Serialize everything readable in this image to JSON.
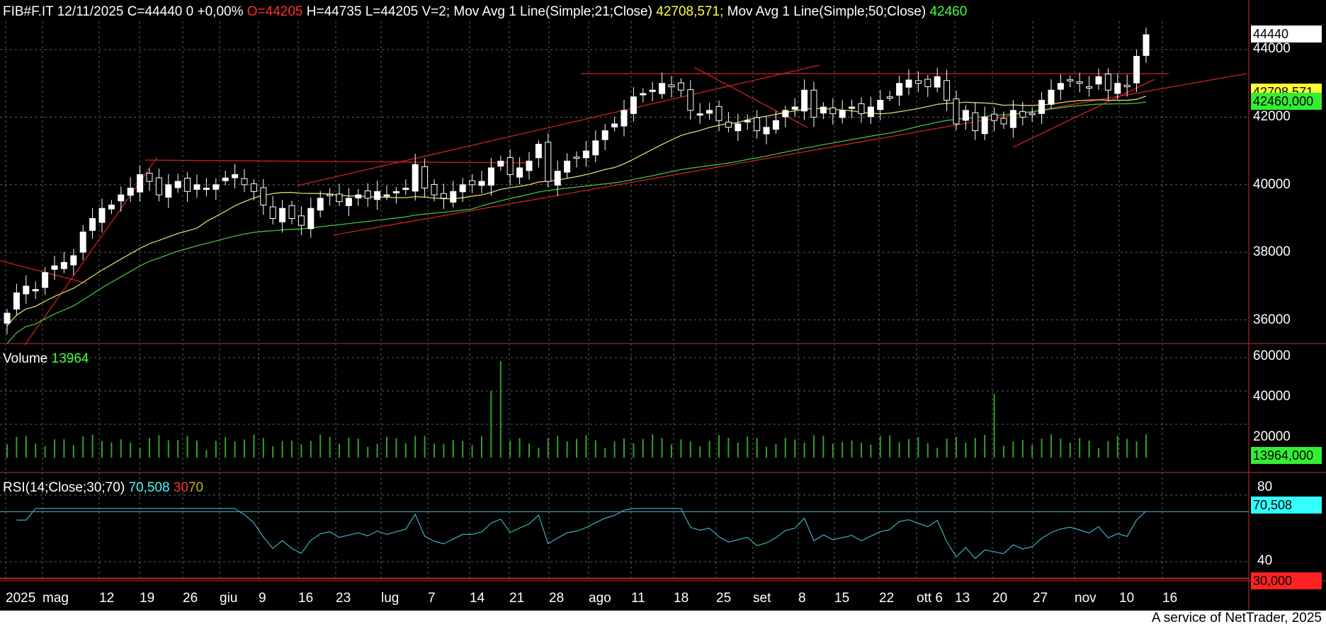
{
  "header": {
    "symbol": "FIB#F.IT",
    "date": "12/11/2025",
    "close": "C=44440",
    "change": "0",
    "change_pct": "+0,00%",
    "open": "O=44205",
    "high": "H=44735",
    "low": "L=44205",
    "volume": "V=2;",
    "ma21_label": "Mov Avg 1 Line(Simple;21;Close)",
    "ma21_value": "42708,571;",
    "ma50_label": "Mov Avg 1 Line(Simple;50;Close)",
    "ma50_value": "42460"
  },
  "volume_panel": {
    "label": "Volume",
    "value": "13964"
  },
  "rsi_panel": {
    "label": "RSI(14;Close;30;70)",
    "value": "70,508",
    "lower": "30",
    "upper": "70"
  },
  "price_axis": [
    "44000",
    "42000",
    "40000",
    "38000",
    "36000"
  ],
  "volume_axis": [
    "60000",
    "40000",
    "20000"
  ],
  "rsi_axis": [
    "80",
    "40"
  ],
  "tags": {
    "last_price": "44440",
    "ma21": "42708,571",
    "ma50": "42460,000",
    "volume": "13964,000",
    "rsi": "70,508",
    "rsi_low": "30,000"
  },
  "colors": {
    "background": "#000000",
    "ma21": "#d8d870",
    "ma50": "#40c040",
    "trendline": "#d02020",
    "rsi": "#3fb0c0",
    "volume": "#30a030"
  },
  "x_axis": [
    {
      "label": "2025"
    },
    {
      "label": "mag"
    },
    {
      "label": "12"
    },
    {
      "label": "19"
    },
    {
      "label": "26"
    },
    {
      "label": "giu"
    },
    {
      "label": "9"
    },
    {
      "label": "16"
    },
    {
      "label": "23"
    },
    {
      "label": "lug"
    },
    {
      "label": "7"
    },
    {
      "label": "14"
    },
    {
      "label": "21"
    },
    {
      "label": "28"
    },
    {
      "label": "ago"
    },
    {
      "label": "11"
    },
    {
      "label": "18"
    },
    {
      "label": "25"
    },
    {
      "label": "set"
    },
    {
      "label": "8"
    },
    {
      "label": "15"
    },
    {
      "label": "22"
    },
    {
      "label": "ott 6"
    },
    {
      "label": "13"
    },
    {
      "label": "20"
    },
    {
      "label": "27"
    },
    {
      "label": "nov"
    },
    {
      "label": "10"
    },
    {
      "label": "16"
    }
  ],
  "footer": "A service of NetTrader, 2025",
  "chart_data": {
    "type": "candlestick",
    "price_range": [
      35500,
      45000
    ],
    "closes": [
      36200,
      36800,
      37000,
      36900,
      37400,
      37600,
      37700,
      37900,
      38600,
      39000,
      39300,
      39400,
      39700,
      39900,
      40300,
      40100,
      39700,
      40000,
      40100,
      39800,
      40000,
      39900,
      40000,
      40200,
      40300,
      40000,
      39800,
      39400,
      39000,
      39300,
      39000,
      38800,
      39300,
      39600,
      39700,
      39500,
      39600,
      39700,
      39600,
      39800,
      39700,
      39800,
      39900,
      40600,
      39900,
      39700,
      39600,
      39800,
      40000,
      40000,
      40100,
      40500,
      40700,
      40300,
      40500,
      40700,
      41200,
      40100,
      40400,
      40700,
      40800,
      41000,
      41300,
      41600,
      41800,
      42200,
      42600,
      42700,
      42800,
      43000,
      42900,
      42800,
      42200,
      42100,
      42200,
      41900,
      41700,
      41800,
      41900,
      41600,
      41700,
      41900,
      42200,
      42300,
      42800,
      42000,
      42300,
      42100,
      42200,
      42300,
      42100,
      42300,
      42500,
      42600,
      43000,
      43100,
      43000,
      42900,
      43200,
      42500,
      41800,
      42200,
      41600,
      42000,
      41900,
      41800,
      42200,
      42000,
      42100,
      42500,
      42800,
      43000,
      43100,
      43000,
      42900,
      43200,
      42800,
      43000,
      42900,
      43800,
      44440
    ],
    "ma21_last": 42708.571,
    "ma50_last": 42460,
    "volume_range": [
      0,
      64000
    ],
    "volume_last": 13964,
    "volume_spikes": [
      {
        "index": 51,
        "value": 40000
      },
      {
        "index": 52,
        "value": 58000
      },
      {
        "index": 104,
        "value": 38000
      }
    ],
    "rsi_range": [
      25,
      85
    ],
    "rsi_last": 70.508,
    "rsi_levels": [
      30,
      70
    ]
  }
}
